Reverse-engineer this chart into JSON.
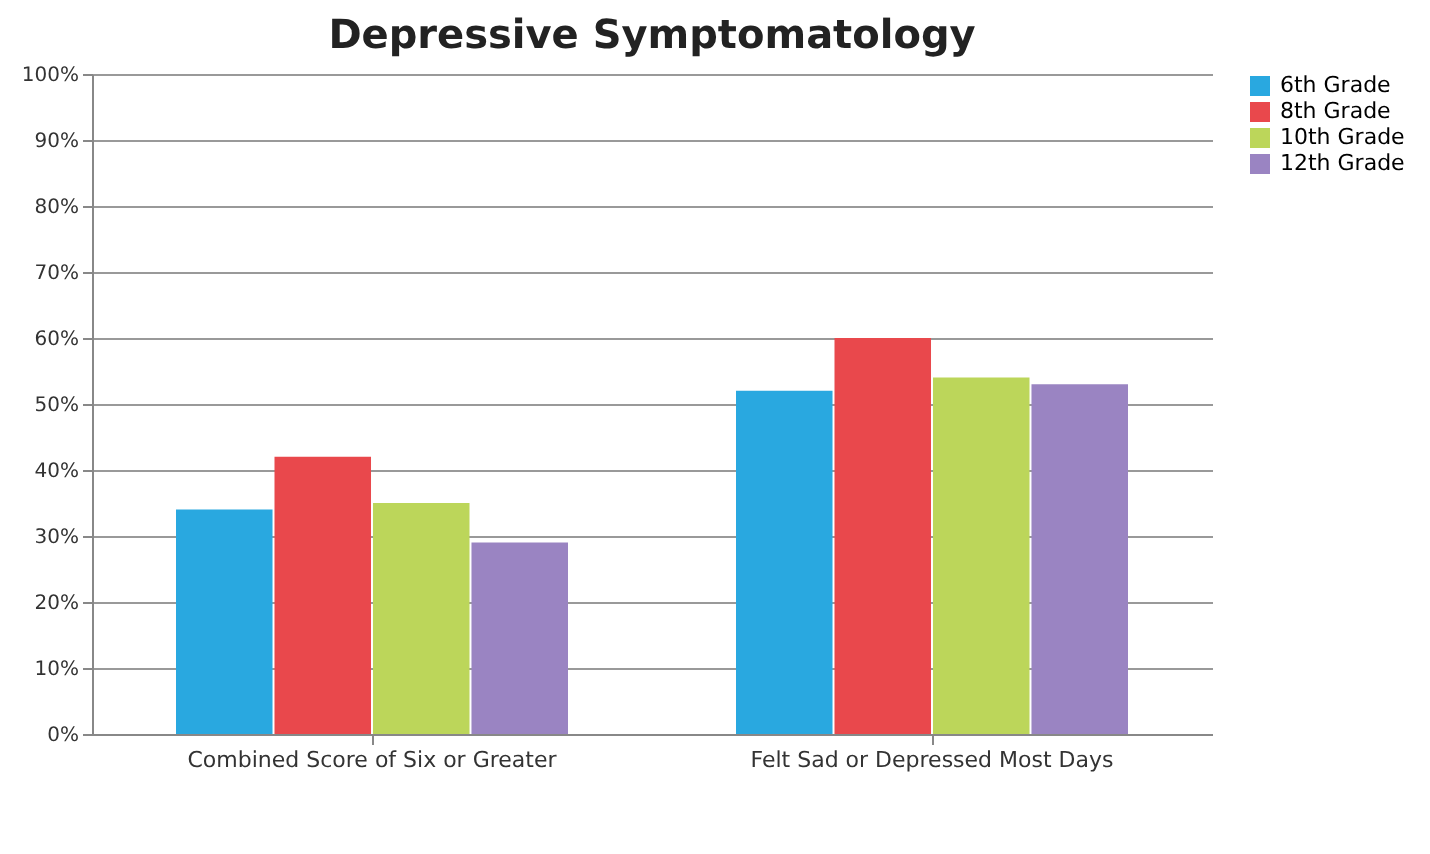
{
  "chart_data": {
    "type": "bar",
    "title": "Depressive Symptomatology",
    "categories": [
      "Combined Score of Six or Greater",
      "Felt Sad or Depressed Most Days"
    ],
    "series": [
      {
        "name": "6th Grade",
        "color": "#29a8e0",
        "values": [
          34,
          52
        ]
      },
      {
        "name": "8th Grade",
        "color": "#e9484c",
        "values": [
          42,
          60
        ]
      },
      {
        "name": "10th Grade",
        "color": "#bcd65a",
        "values": [
          35,
          54
        ]
      },
      {
        "name": "12th Grade",
        "color": "#9a84c2",
        "values": [
          29,
          53
        ]
      }
    ],
    "ylim": [
      0,
      100
    ],
    "yticks": [
      {
        "value": 0,
        "label": "0%"
      },
      {
        "value": 10,
        "label": "10%"
      },
      {
        "value": 20,
        "label": "20%"
      },
      {
        "value": 30,
        "label": "30%"
      },
      {
        "value": 40,
        "label": "40%"
      },
      {
        "value": 50,
        "label": "50%"
      },
      {
        "value": 60,
        "label": "60%"
      },
      {
        "value": 70,
        "label": "70%"
      },
      {
        "value": 80,
        "label": "80%"
      },
      {
        "value": 90,
        "label": "90%"
      },
      {
        "value": 100,
        "label": "100%"
      }
    ],
    "grid": "y",
    "legend": "right"
  }
}
